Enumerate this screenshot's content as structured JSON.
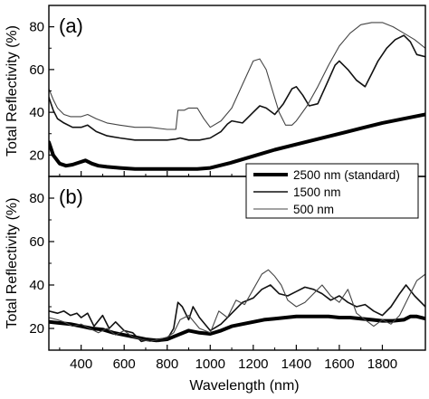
{
  "chart_data": [
    {
      "type": "line",
      "panel_label": "(a)",
      "ylabel": "Total Reflectivity (%)",
      "xlabel": "",
      "xlim": [
        250,
        2000
      ],
      "ylim": [
        10,
        90
      ],
      "xticks": [
        400,
        600,
        800,
        1000,
        1200,
        1400,
        1600,
        1800
      ],
      "yticks": [
        20,
        40,
        60,
        80
      ],
      "x_tick_labels_shown": false,
      "grid": false,
      "legend_position": "bottom-right",
      "series": [
        {
          "name": "2500 nm (standard)",
          "line": "thick",
          "x": [
            250,
            270,
            300,
            330,
            360,
            390,
            420,
            450,
            480,
            520,
            580,
            650,
            720,
            800,
            880,
            940,
            1000,
            1100,
            1200,
            1300,
            1400,
            1500,
            1600,
            1700,
            1800,
            1900,
            2000
          ],
          "y": [
            26,
            20,
            16,
            15,
            15.5,
            16.5,
            17.5,
            16,
            15,
            14.5,
            14,
            13.5,
            13.5,
            13.5,
            13.5,
            13.5,
            14,
            16.5,
            19.5,
            22.5,
            25,
            27.5,
            30,
            32.5,
            35,
            37,
            39
          ]
        },
        {
          "name": "1500 nm",
          "line": "medium",
          "x": [
            250,
            270,
            290,
            320,
            360,
            400,
            430,
            470,
            520,
            580,
            650,
            720,
            800,
            840,
            860,
            900,
            950,
            1000,
            1050,
            1080,
            1100,
            1150,
            1200,
            1230,
            1260,
            1300,
            1340,
            1380,
            1400,
            1430,
            1460,
            1500,
            1540,
            1580,
            1600,
            1640,
            1680,
            1720,
            1750,
            1780,
            1820,
            1860,
            1900,
            1930,
            1960,
            2000
          ],
          "y": [
            47,
            41,
            37,
            35,
            33,
            33,
            34,
            31,
            29,
            28,
            27,
            27,
            27,
            27.5,
            28,
            27,
            27,
            28,
            31,
            34.5,
            36,
            35,
            40,
            43,
            42,
            39,
            44,
            51,
            52,
            48,
            43,
            44,
            53,
            62,
            64,
            60,
            55,
            52,
            58,
            64,
            70,
            74,
            76,
            73,
            67,
            66
          ]
        },
        {
          "name": "500 nm",
          "line": "thin",
          "x": [
            250,
            270,
            290,
            320,
            350,
            400,
            430,
            470,
            520,
            580,
            650,
            720,
            800,
            840,
            850,
            860,
            880,
            900,
            920,
            940,
            970,
            1000,
            1050,
            1100,
            1150,
            1200,
            1230,
            1260,
            1290,
            1320,
            1350,
            1380,
            1400,
            1450,
            1500,
            1550,
            1600,
            1650,
            1700,
            1750,
            1800,
            1850,
            1900,
            1950,
            2000
          ],
          "y": [
            51,
            46,
            42,
            39,
            38,
            38,
            39,
            37,
            35,
            34,
            33,
            33,
            32,
            32,
            41,
            41,
            41,
            42,
            42,
            42,
            37,
            33,
            36,
            42,
            53,
            64,
            65,
            60,
            50,
            40,
            34,
            34,
            36,
            43,
            52,
            62,
            71,
            77,
            81,
            82,
            82,
            80,
            77,
            74,
            70
          ]
        }
      ]
    },
    {
      "type": "line",
      "panel_label": "(b)",
      "ylabel": "Total Reflectivity (%)",
      "xlabel": "Wavelength (nm)",
      "xlim": [
        250,
        2000
      ],
      "ylim": [
        10,
        90
      ],
      "xticks": [
        400,
        600,
        800,
        1000,
        1200,
        1400,
        1600,
        1800
      ],
      "yticks": [
        20,
        40,
        60,
        80
      ],
      "x_tick_labels_shown": true,
      "grid": false,
      "series": [
        {
          "name": "2500 nm (standard)",
          "line": "thick",
          "x": [
            250,
            300,
            350,
            400,
            450,
            500,
            550,
            600,
            650,
            700,
            750,
            800,
            850,
            900,
            950,
            1000,
            1050,
            1100,
            1150,
            1200,
            1250,
            1300,
            1350,
            1400,
            1450,
            1500,
            1550,
            1600,
            1650,
            1700,
            1750,
            1800,
            1850,
            1900,
            1930,
            1960,
            2000
          ],
          "y": [
            23,
            22.5,
            22,
            21,
            20,
            19.5,
            18,
            17,
            16,
            15,
            14.5,
            15,
            17,
            19,
            18,
            17.5,
            19,
            21,
            22,
            23,
            24,
            24.5,
            25,
            25.5,
            25.5,
            25.5,
            25.5,
            25,
            25,
            24.5,
            24,
            23.5,
            23.5,
            24,
            25.5,
            25.5,
            24.5
          ]
        },
        {
          "name": "1500 nm",
          "line": "medium",
          "x": [
            250,
            290,
            320,
            350,
            380,
            400,
            430,
            460,
            500,
            530,
            560,
            600,
            640,
            680,
            720,
            760,
            800,
            830,
            850,
            870,
            900,
            920,
            950,
            1000,
            1050,
            1100,
            1150,
            1200,
            1240,
            1280,
            1320,
            1360,
            1400,
            1440,
            1480,
            1520,
            1560,
            1600,
            1640,
            1680,
            1720,
            1760,
            1800,
            1840,
            1880,
            1910,
            1950,
            2000
          ],
          "y": [
            28,
            27,
            28,
            26,
            27,
            25,
            27,
            21,
            26,
            20,
            23,
            19,
            18,
            14,
            15,
            14,
            15,
            20,
            32,
            30,
            24,
            30,
            25,
            19,
            22,
            27,
            32,
            34,
            38,
            40,
            36,
            35,
            37,
            39,
            38,
            36,
            33,
            35,
            32,
            30,
            31,
            28,
            26,
            30,
            36,
            40,
            35,
            30
          ]
        },
        {
          "name": "500 nm",
          "line": "thin",
          "x": [
            250,
            290,
            320,
            360,
            400,
            440,
            480,
            520,
            560,
            600,
            640,
            680,
            720,
            760,
            800,
            830,
            860,
            900,
            950,
            1000,
            1040,
            1080,
            1120,
            1160,
            1200,
            1240,
            1270,
            1300,
            1330,
            1360,
            1400,
            1440,
            1480,
            1520,
            1560,
            1600,
            1640,
            1680,
            1720,
            1760,
            1800,
            1840,
            1880,
            1920,
            1960,
            2000
          ],
          "y": [
            25,
            24,
            23,
            21,
            22,
            20,
            18,
            20,
            17,
            19,
            16,
            15,
            14,
            15,
            16,
            18,
            24,
            26,
            20,
            18,
            28,
            25,
            33,
            31,
            38,
            45,
            47,
            44,
            40,
            33,
            30,
            32,
            36,
            40,
            35,
            32,
            38,
            27,
            24,
            21,
            24,
            22,
            26,
            34,
            42,
            45
          ]
        }
      ]
    }
  ]
}
